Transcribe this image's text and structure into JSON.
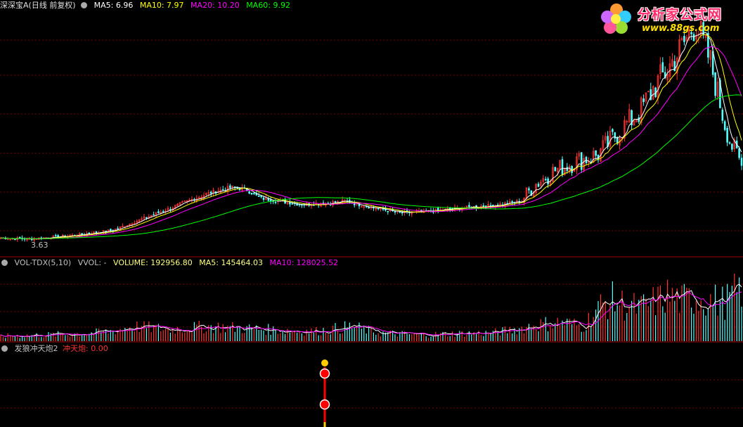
{
  "colors": {
    "ma5": "#ffffff",
    "ma10": "#ffff00",
    "ma20": "#ff00ff",
    "ma60": "#00ff00",
    "up": "#ff3232",
    "down": "#54ffff",
    "grid": "#7a0000",
    "label": "#c0c0c0",
    "signal_line": "#ff0000",
    "signal_marker": "#ffcc00"
  },
  "price_panel": {
    "title": "深深宝A(日线 前复权)",
    "ma5_label": "MA5: 6.96",
    "ma10_label": "MA10: 7.97",
    "ma20_label": "MA20: 10.20",
    "ma60_label": "MA60: 9.92",
    "low_label": "3.63"
  },
  "volume_panel": {
    "title": "VOL-TDX(5,10)",
    "vvol_label": "VVOL: -",
    "volume_label": "VOLUME: 192956.80",
    "ma5_label": "MA5: 145464.03",
    "ma10_label": "MA10: 128025.52"
  },
  "signal_panel": {
    "title": "发狼冲天炮2",
    "value_label": "冲天炮: 0.00"
  },
  "logo": {
    "name": "分析家公式网",
    "url": "www.88gs.com",
    "icon": "flower-logo-icon"
  },
  "chart_data": [
    {
      "type": "candlestick",
      "title": "深深宝A(日线 前复权)",
      "y_low_marker": 3.63,
      "ylim": [
        3.3,
        14.2
      ],
      "close_anchors": [
        [
          0,
          3.75
        ],
        [
          40,
          3.7
        ],
        [
          100,
          3.85
        ],
        [
          160,
          4.1
        ],
        [
          200,
          4.6
        ],
        [
          240,
          5.1
        ],
        [
          270,
          5.5
        ],
        [
          300,
          5.85
        ],
        [
          330,
          6.1
        ],
        [
          350,
          6.0
        ],
        [
          370,
          5.6
        ],
        [
          400,
          5.45
        ],
        [
          430,
          5.3
        ],
        [
          460,
          5.35
        ],
        [
          490,
          5.45
        ],
        [
          510,
          5.3
        ],
        [
          540,
          5.1
        ],
        [
          570,
          4.9
        ],
        [
          600,
          4.95
        ],
        [
          630,
          5.05
        ],
        [
          660,
          5.15
        ],
        [
          700,
          5.25
        ],
        [
          740,
          5.45
        ],
        [
          760,
          6.2
        ],
        [
          790,
          6.9
        ],
        [
          820,
          7.3
        ],
        [
          850,
          7.6
        ],
        [
          870,
          8.3
        ],
        [
          890,
          9.0
        ],
        [
          910,
          9.6
        ],
        [
          930,
          10.7
        ],
        [
          950,
          11.6
        ],
        [
          970,
          12.6
        ],
        [
          990,
          13.8
        ],
        [
          1000,
          12.8
        ],
        [
          1010,
          12.0
        ],
        [
          1020,
          10.6
        ],
        [
          1030,
          9.2
        ],
        [
          1040,
          8.1
        ],
        [
          1050,
          7.5
        ],
        [
          1057,
          6.9
        ]
      ],
      "moving_averages": [
        {
          "name": "MA5",
          "value": 6.96,
          "period": 5
        },
        {
          "name": "MA10",
          "value": 7.97,
          "period": 10
        },
        {
          "name": "MA20",
          "value": 10.2,
          "period": 20
        },
        {
          "name": "MA60",
          "value": 9.92,
          "period": 60
        }
      ],
      "grid": true
    },
    {
      "type": "bar",
      "title": "VOL-TDX(5,10)",
      "ylim": [
        0,
        260000
      ],
      "volume_anchors": [
        [
          0,
          20000
        ],
        [
          100,
          28000
        ],
        [
          150,
          35000
        ],
        [
          190,
          55000
        ],
        [
          240,
          45000
        ],
        [
          300,
          55000
        ],
        [
          350,
          48000
        ],
        [
          400,
          42000
        ],
        [
          450,
          38000
        ],
        [
          500,
          55000
        ],
        [
          540,
          32000
        ],
        [
          600,
          25000
        ],
        [
          650,
          30000
        ],
        [
          700,
          32000
        ],
        [
          740,
          48000
        ],
        [
          760,
          60000
        ],
        [
          800,
          70000
        ],
        [
          830,
          55000
        ],
        [
          850,
          120000
        ],
        [
          870,
          150000
        ],
        [
          890,
          130000
        ],
        [
          910,
          120000
        ],
        [
          930,
          140000
        ],
        [
          950,
          165000
        ],
        [
          970,
          145000
        ],
        [
          990,
          160000
        ],
        [
          1010,
          150000
        ],
        [
          1030,
          140000
        ],
        [
          1057,
          192956.8
        ]
      ],
      "series": [
        {
          "name": "VOLUME",
          "last": 192956.8
        },
        {
          "name": "MA5",
          "last": 145464.03
        },
        {
          "name": "MA10",
          "last": 128025.52
        }
      ]
    },
    {
      "type": "line",
      "title": "发狼冲天炮2",
      "series": [
        {
          "name": "冲天炮",
          "last": 0.0
        }
      ]
    }
  ]
}
